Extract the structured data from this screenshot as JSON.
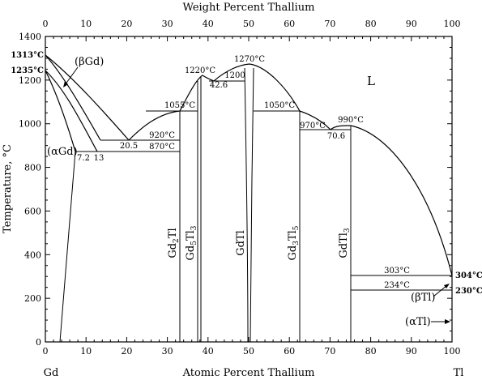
{
  "header": {
    "top_axis_title": "Weight Percent Thallium",
    "bottom_axis_title": "Atomic Percent Thallium",
    "y_axis_title": "Temperature, °C"
  },
  "elements": {
    "left": "Gd",
    "right": "Tl"
  },
  "axes": {
    "top_ticks": [
      "0",
      "10",
      "20",
      "30",
      "40",
      "50",
      "60",
      "70",
      "80",
      "90",
      "100"
    ],
    "bottom_ticks": [
      "0",
      "10",
      "20",
      "30",
      "40",
      "50",
      "60",
      "70",
      "80",
      "90",
      "100"
    ],
    "left_ticks": [
      "0",
      "200",
      "400",
      "600",
      "800",
      "1000",
      "1200",
      "1400"
    ],
    "x_range": [
      0,
      100
    ],
    "y_range": [
      0,
      1400
    ]
  },
  "phases": {
    "L": "L",
    "beta_gd": "(βGd)",
    "alpha_gd": "(αGd)",
    "beta_tl": "(βTl)",
    "alpha_tl": "(αTl)",
    "gd2tl": {
      "base": "Gd",
      "s1": "2",
      "mid": "Tl",
      "s2": ""
    },
    "gd5tl3": {
      "base": "Gd",
      "s1": "5",
      "mid": "Tl",
      "s2": "3"
    },
    "gdtl": {
      "base": "GdTl",
      "s1": "",
      "mid": "",
      "s2": ""
    },
    "gd3tl5": {
      "base": "Gd",
      "s1": "3",
      "mid": "Tl",
      "s2": "5"
    },
    "gdtl3": {
      "base": "GdTl",
      "s1": "3",
      "mid": "",
      "s2": ""
    }
  },
  "annotations": {
    "t1313": "1313°C",
    "t1235": "1235°C",
    "t1220": "1220°C",
    "t1270": "1270°C",
    "t1200": "1200",
    "c42_6": "42.6",
    "t1055": "1055°C",
    "t1050": "1050°C",
    "t970": "970°C",
    "t990": "990°C",
    "c70_6": "70.6",
    "c20_5": "20.5",
    "t920": "920°C",
    "t870": "870°C",
    "c7_2": "7.2",
    "c13": "13",
    "t303": "303°C",
    "t234": "234°C",
    "t304": "304°C",
    "t230": "230°C"
  },
  "chart_data": {
    "type": "phase-diagram",
    "xlabel": "Atomic Percent Thallium",
    "x2label": "Weight Percent Thallium",
    "ylabel": "Temperature, °C",
    "xlim": [
      0,
      100
    ],
    "ylim": [
      0,
      1400
    ],
    "components": [
      "Gd",
      "Tl"
    ],
    "melting_points": {
      "Gd": 1313,
      "Tl": 304
    },
    "allotropic_transitions": {
      "Gd": 1235,
      "Tl": 230
    },
    "intermetallic_compounds": [
      {
        "formula": "Gd2Tl",
        "at_pct_tl": 33.3,
        "formation": "peritectic",
        "temperature": 1055
      },
      {
        "formula": "Gd5Tl3",
        "at_pct_tl": 37.5,
        "formation": "congruent",
        "temperature": 1220
      },
      {
        "formula": "GdTl",
        "at_pct_tl": 50,
        "formation": "congruent",
        "temperature": 1270
      },
      {
        "formula": "Gd3Tl5",
        "at_pct_tl": 62.5,
        "formation": "peritectic",
        "temperature": 1050
      },
      {
        "formula": "GdTl3",
        "at_pct_tl": 75,
        "formation": "congruent",
        "temperature": 990
      }
    ],
    "invariant_reactions": [
      {
        "type": "eutectic",
        "temperature": 920,
        "at_pct_tl": 20.5
      },
      {
        "type": "eutectoid",
        "temperature": 870,
        "at_pct_tl": 13
      },
      {
        "type": "eutectic",
        "temperature": 1200,
        "at_pct_tl": 42.6
      },
      {
        "type": "eutectic",
        "temperature": 970,
        "at_pct_tl": 70.6
      },
      {
        "type": "peritectic",
        "temperature": 1055
      },
      {
        "type": "peritectic",
        "temperature": 1050
      },
      {
        "type": "peritectic",
        "temperature": 303
      },
      {
        "type": "transition",
        "temperature": 234
      }
    ],
    "solubility_limits": [
      {
        "phase": "(αGd)",
        "at_pct_tl": 7.2,
        "temperature": 870
      }
    ],
    "grid": false
  }
}
